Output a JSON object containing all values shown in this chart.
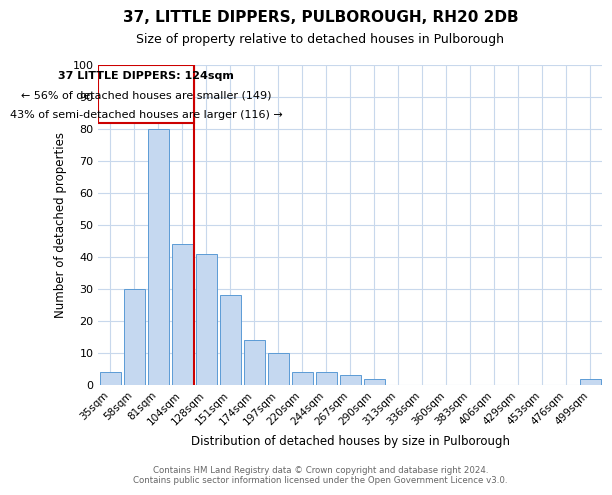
{
  "title": "37, LITTLE DIPPERS, PULBOROUGH, RH20 2DB",
  "subtitle": "Size of property relative to detached houses in Pulborough",
  "xlabel": "Distribution of detached houses by size in Pulborough",
  "ylabel": "Number of detached properties",
  "bin_labels": [
    "35sqm",
    "58sqm",
    "81sqm",
    "104sqm",
    "128sqm",
    "151sqm",
    "174sqm",
    "197sqm",
    "220sqm",
    "244sqm",
    "267sqm",
    "290sqm",
    "313sqm",
    "336sqm",
    "360sqm",
    "383sqm",
    "406sqm",
    "429sqm",
    "453sqm",
    "476sqm",
    "499sqm"
  ],
  "bar_values": [
    4,
    30,
    80,
    44,
    41,
    28,
    14,
    10,
    4,
    4,
    3,
    2,
    0,
    0,
    0,
    0,
    0,
    0,
    0,
    0,
    2
  ],
  "bar_color": "#c5d8f0",
  "bar_edge_color": "#5b9bd5",
  "ylim": [
    0,
    100
  ],
  "yticks": [
    0,
    10,
    20,
    30,
    40,
    50,
    60,
    70,
    80,
    90,
    100
  ],
  "property_line_bin": 4,
  "property_line_color": "#cc0000",
  "annotation_title": "37 LITTLE DIPPERS: 124sqm",
  "annotation_line1": "← 56% of detached houses are smaller (149)",
  "annotation_line2": "43% of semi-detached houses are larger (116) →",
  "annotation_box_color": "#cc0000",
  "footer_line1": "Contains HM Land Registry data © Crown copyright and database right 2024.",
  "footer_line2": "Contains public sector information licensed under the Open Government Licence v3.0.",
  "background_color": "#ffffff",
  "grid_color": "#c8d8ec"
}
